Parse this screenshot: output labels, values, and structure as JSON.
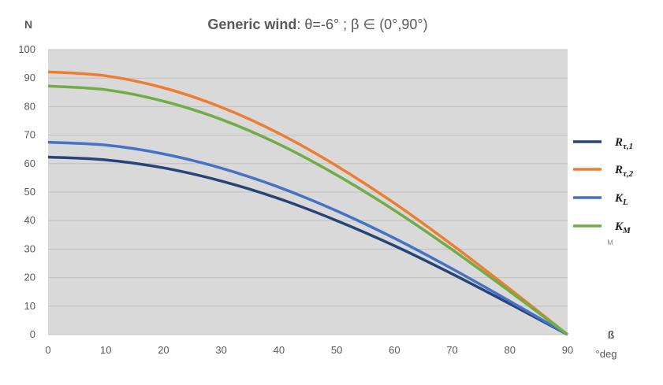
{
  "chart_data": {
    "type": "line",
    "title_bold": "Generic wind",
    "title_rest": ": θ=-6° ; β ∈ (0°,90°)",
    "ylabel": "N",
    "xlabel": "ß",
    "xunit": "°deg",
    "xlim": [
      0,
      90
    ],
    "ylim": [
      0,
      100
    ],
    "xticks": [
      0,
      10,
      20,
      30,
      40,
      50,
      60,
      70,
      80,
      90
    ],
    "yticks": [
      0,
      10,
      20,
      30,
      40,
      50,
      60,
      70,
      80,
      90,
      100
    ],
    "grid": true,
    "legend_position": "right",
    "stray_label": "M",
    "x": [
      0,
      10,
      20,
      30,
      40,
      50,
      60,
      70,
      80,
      90
    ],
    "series": [
      {
        "name": "R",
        "sub": "τ,1",
        "color": "#264478",
        "values": [
          62.3,
          61.3,
          58.5,
          53.9,
          47.7,
          40.0,
          31.2,
          21.3,
          10.8,
          0
        ]
      },
      {
        "name": "R",
        "sub": "τ,2",
        "color": "#ED7D31",
        "values": [
          92.2,
          90.8,
          86.6,
          79.8,
          70.6,
          59.2,
          46.1,
          31.5,
          16.0,
          0
        ]
      },
      {
        "name": "K",
        "sub": "L",
        "color": "#4472C4",
        "values": [
          67.5,
          66.5,
          63.4,
          58.4,
          51.7,
          43.4,
          33.8,
          23.1,
          11.7,
          0
        ]
      },
      {
        "name": "K",
        "sub": "M",
        "color": "#70AD47",
        "values": [
          87.2,
          85.9,
          81.9,
          75.5,
          66.8,
          56.0,
          43.6,
          29.8,
          15.1,
          0
        ]
      }
    ]
  }
}
